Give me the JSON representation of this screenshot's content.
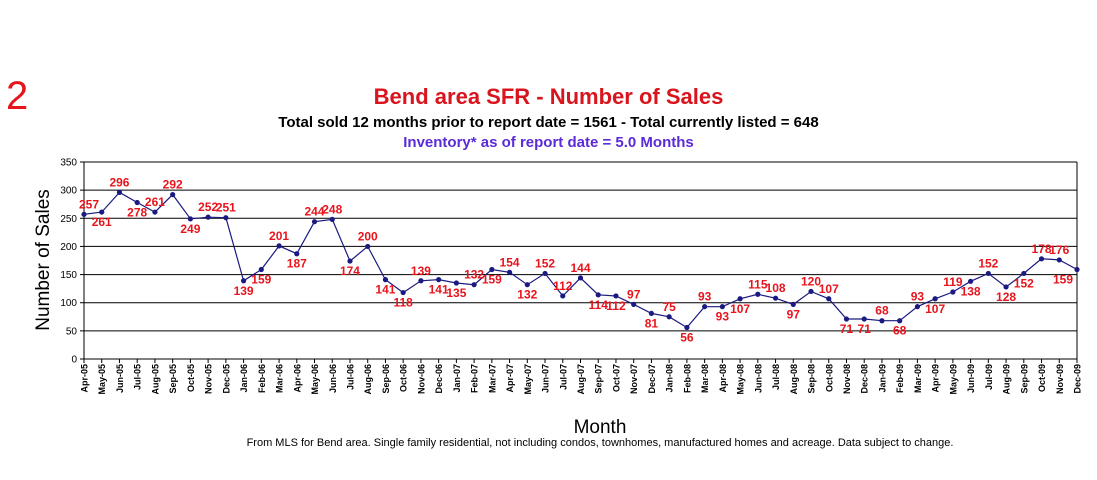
{
  "page": {
    "slide_number": "2",
    "footnote": "From MLS for Bend area. Single family residential, not including condos, townhomes, manufactured homes and acreage.  Data subject to change."
  },
  "chart_data": {
    "type": "line",
    "title": "Bend area SFR - Number of Sales",
    "subtitle": "Total sold 12 months prior to report date = 1561 - Total currently listed = 648",
    "subtitle2": "Inventory* as of report date = 5.0 Months",
    "xlabel": "Month",
    "ylabel": "Number of Sales",
    "ylim": [
      0,
      350
    ],
    "yticks": [
      0,
      50,
      100,
      150,
      200,
      250,
      300,
      350
    ],
    "grid": "horizontal",
    "legend": "none",
    "colors": {
      "line": "#1a1a80",
      "marker": "#1a1a80",
      "label": "#e8141c",
      "title": "#d9141c",
      "inventory": "#5a2bd6",
      "grid": "#000000"
    },
    "categories": [
      "Apr-05",
      "May-05",
      "Jun-05",
      "Jul-05",
      "Aug-05",
      "Sep-05",
      "Oct-05",
      "Nov-05",
      "Dec-05",
      "Jan-06",
      "Feb-06",
      "Mar-06",
      "Apr-06",
      "May-06",
      "Jun-06",
      "Jul-06",
      "Aug-06",
      "Sep-06",
      "Oct-06",
      "Nov-06",
      "Dec-06",
      "Jan-07",
      "Feb-07",
      "Mar-07",
      "Apr-07",
      "May-07",
      "Jun-07",
      "Jul-07",
      "Aug-07",
      "Sep-07",
      "Oct-07",
      "Nov-07",
      "Dec-07",
      "Jan-08",
      "Feb-08",
      "Mar-08",
      "Apr-08",
      "May-08",
      "Jun-08",
      "Jul-08",
      "Aug-08",
      "Sep-08",
      "Oct-08",
      "Nov-08",
      "Dec-08",
      "Jan-09",
      "Feb-09",
      "Mar-09",
      "Apr-09",
      "May-09",
      "Jun-09",
      "Jul-09",
      "Aug-09",
      "Sep-09",
      "Oct-09",
      "Nov-09",
      "Dec-09"
    ],
    "series": [
      {
        "values": [
          257,
          261,
          296,
          278,
          261,
          292,
          249,
          252,
          251,
          139,
          159,
          201,
          187,
          244,
          248,
          174,
          200,
          141,
          118,
          139,
          141,
          135,
          132,
          159,
          154,
          132,
          152,
          112,
          144,
          114,
          112,
          97,
          81,
          75,
          56,
          93,
          93,
          107,
          115,
          108,
          97,
          120,
          107,
          71,
          71,
          68,
          68,
          93,
          107,
          119,
          138,
          152,
          128,
          152,
          178,
          176,
          159
        ],
        "labels": [
          "257",
          "261",
          "296",
          "278",
          "261",
          "292",
          "249",
          "252",
          "251",
          "139",
          "159",
          "201",
          "187",
          "244",
          "248",
          "174",
          "200",
          "141",
          "118",
          "139",
          "141",
          "135",
          "132",
          "159",
          "154",
          "132",
          "152",
          "112",
          "144",
          "114",
          "112",
          "97",
          "81",
          "75",
          "56",
          "93",
          "93",
          "107",
          "115",
          "108",
          "97",
          "120",
          "107",
          "71",
          "71",
          "68",
          "68",
          "93",
          "107",
          "119",
          "138",
          "152",
          "128",
          "152",
          "178",
          "176",
          "159"
        ],
        "label_positions": [
          "above",
          "below",
          "above",
          "below",
          "above",
          "above",
          "below",
          "above",
          "above",
          "below",
          "below",
          "above",
          "below",
          "above",
          "above",
          "below",
          "above",
          "below",
          "below",
          "above",
          "below",
          "below",
          "above",
          "below",
          "above",
          "below",
          "above",
          "above",
          "above",
          "below",
          "below",
          "above",
          "below",
          "above",
          "below",
          "above",
          "below",
          "below",
          "above",
          "above",
          "below",
          "above",
          "above",
          "below",
          "below",
          "above",
          "below",
          "above",
          "below",
          "above",
          "below",
          "above",
          "below",
          "below",
          "above",
          "above",
          "below"
        ]
      }
    ]
  }
}
